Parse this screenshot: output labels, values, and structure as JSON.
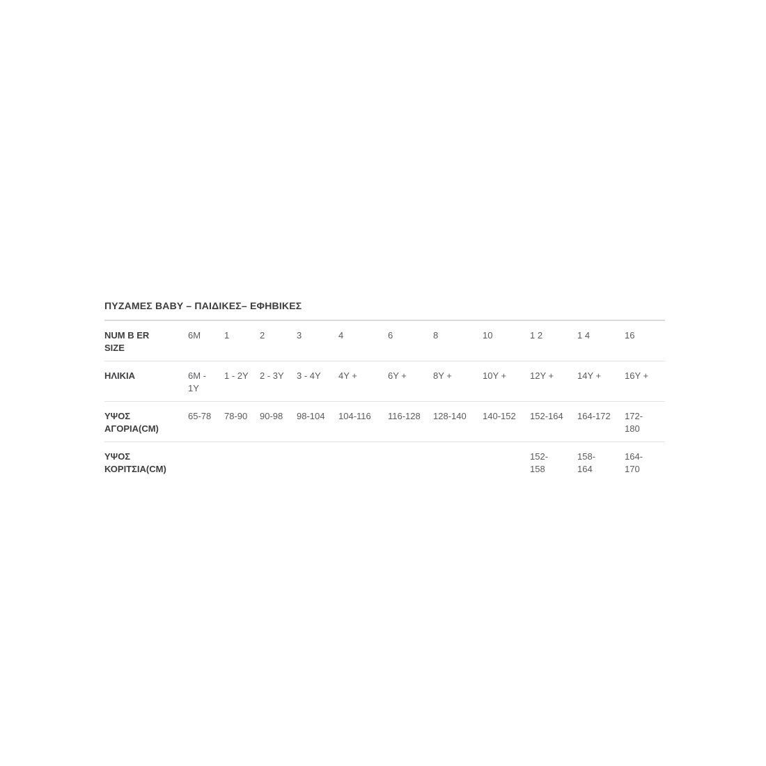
{
  "page": {
    "background": "#ffffff"
  },
  "size_chart": {
    "title": "ΠΥΖΑΜΕΣ BABY – ΠΑΙΔΙΚΕΣ– ΕΦΗΒΙΚΕΣ",
    "colors": {
      "title_text": "#3d3d3f",
      "label_text": "#3d3d3f",
      "value_text": "#5b5b5e",
      "title_rule": "#dbdbdb",
      "row_rule": "#e2e2e2"
    },
    "rows": [
      {
        "label": "NUM B ER\nSIZE",
        "values": [
          "6M",
          "1",
          "2",
          "3",
          "4",
          "6",
          "8",
          "10",
          "1 2",
          "1 4",
          "16"
        ]
      },
      {
        "label": "ΗΛΙΚΙΑ",
        "values": [
          "6M -\n1Y",
          "1 - 2Y",
          "2 - 3Y",
          "3 - 4Y",
          "4Y +",
          "6Y +",
          "8Y +",
          "10Y +",
          "12Y +",
          "14Y +",
          "16Y +"
        ]
      },
      {
        "label": "ΥΨΟΣ\nΑΓΟΡΙΑ(CM)",
        "values": [
          "65-78",
          "78-90",
          "90-98",
          "98-104",
          "104-116",
          "116-128",
          "128-140",
          "140-152",
          "152-164",
          "164-172",
          "172-180"
        ]
      },
      {
        "label": "ΥΨΟΣ\nΚΟΡΙΤΣΙΑ(CM)",
        "values": [
          "",
          "",
          "",
          "",
          "",
          "",
          "",
          "",
          "152-\n158",
          "158-\n164",
          "164-170"
        ]
      }
    ]
  }
}
